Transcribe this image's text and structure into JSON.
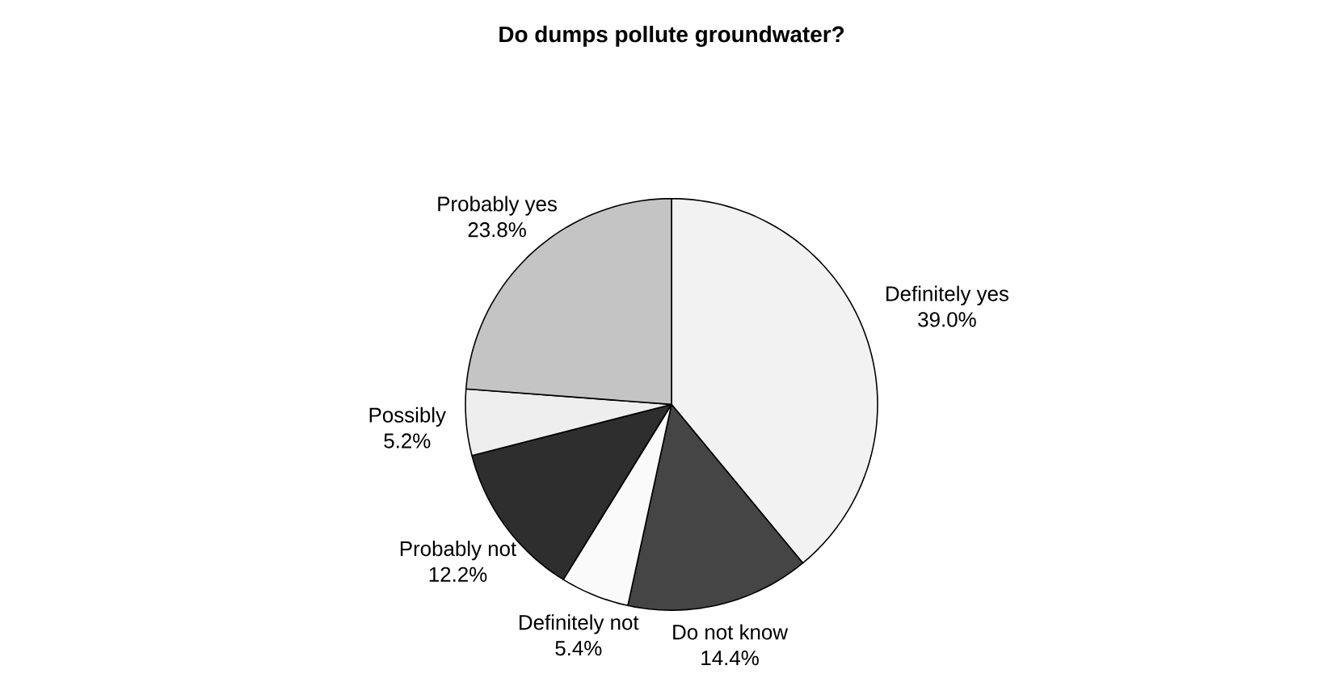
{
  "chart_data": {
    "type": "pie",
    "title": "Do dumps pollute groundwater?",
    "categories": [
      "Definitely yes",
      "Do not know",
      "Definitely not",
      "Probably not",
      "Possibly",
      "Probably yes"
    ],
    "values": [
      39.0,
      14.4,
      5.4,
      12.2,
      5.2,
      23.8
    ],
    "value_labels": [
      "39.0%",
      "14.4%",
      "5.4%",
      "12.2%",
      "5.2%",
      "23.8%"
    ],
    "colors": [
      "#f2f2f2",
      "#454545",
      "#fafafa",
      "#2e2e2e",
      "#eeeeee",
      "#c4c4c4"
    ]
  }
}
